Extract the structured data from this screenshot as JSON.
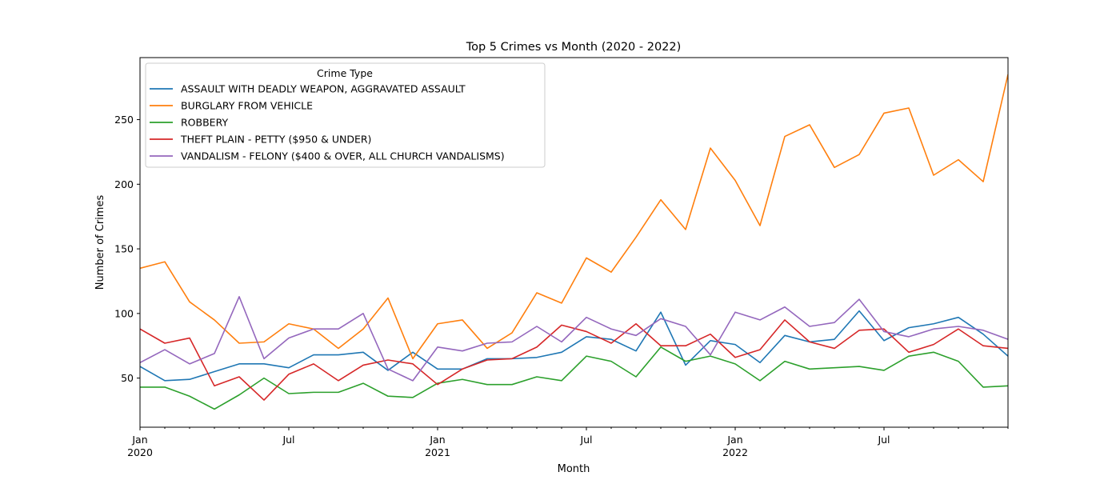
{
  "chart_data": {
    "type": "line",
    "title": "Top 5 Crimes vs Month (2020 - 2022)",
    "xlabel": "Month",
    "ylabel": "Number of Crimes",
    "x": [
      "2020-01",
      "2020-02",
      "2020-03",
      "2020-04",
      "2020-05",
      "2020-06",
      "2020-07",
      "2020-08",
      "2020-09",
      "2020-10",
      "2020-11",
      "2020-12",
      "2021-01",
      "2021-02",
      "2021-03",
      "2021-04",
      "2021-05",
      "2021-06",
      "2021-07",
      "2021-08",
      "2021-09",
      "2021-10",
      "2021-11",
      "2021-12",
      "2022-01",
      "2022-02",
      "2022-03",
      "2022-04",
      "2022-05",
      "2022-06",
      "2022-07",
      "2022-08",
      "2022-09",
      "2022-10",
      "2022-11",
      "2022-12"
    ],
    "ylim": [
      12,
      298
    ],
    "y_ticks": [
      50,
      100,
      150,
      200,
      250
    ],
    "x_ticks": [
      {
        "month": "2020-01",
        "label": "Jan",
        "sublabel": "2020"
      },
      {
        "month": "2020-07",
        "label": "Jul",
        "sublabel": ""
      },
      {
        "month": "2021-01",
        "label": "Jan",
        "sublabel": "2021"
      },
      {
        "month": "2021-07",
        "label": "Jul",
        "sublabel": ""
      },
      {
        "month": "2022-01",
        "label": "Jan",
        "sublabel": "2022"
      },
      {
        "month": "2022-07",
        "label": "Jul",
        "sublabel": ""
      }
    ],
    "grid": false,
    "legend": {
      "title": "Crime Type",
      "placement": "top-left"
    },
    "series": [
      {
        "name": "ASSAULT WITH DEADLY WEAPON, AGGRAVATED ASSAULT",
        "color": "#1f77b4",
        "values": [
          59,
          48,
          49,
          55,
          61,
          61,
          58,
          68,
          68,
          70,
          56,
          70,
          57,
          57,
          65,
          65,
          66,
          70,
          82,
          80,
          71,
          101,
          60,
          79,
          76,
          62,
          83,
          78,
          80,
          102,
          79,
          89,
          92,
          97,
          84,
          67
        ]
      },
      {
        "name": "BURGLARY FROM VEHICLE",
        "color": "#ff7f0e",
        "values": [
          135,
          140,
          109,
          95,
          77,
          78,
          92,
          88,
          73,
          88,
          112,
          65,
          92,
          95,
          73,
          85,
          116,
          108,
          143,
          132,
          159,
          188,
          165,
          228,
          203,
          168,
          237,
          246,
          213,
          223,
          255,
          259,
          207,
          219,
          202,
          285
        ]
      },
      {
        "name": "ROBBERY",
        "color": "#2ca02c",
        "values": [
          43,
          43,
          36,
          26,
          37,
          50,
          38,
          39,
          39,
          46,
          36,
          35,
          46,
          49,
          45,
          45,
          51,
          48,
          67,
          63,
          51,
          74,
          63,
          67,
          61,
          48,
          63,
          57,
          58,
          59,
          56,
          67,
          70,
          63,
          43,
          44
        ]
      },
      {
        "name": "THEFT PLAIN - PETTY ($950 & UNDER)",
        "color": "#d62728",
        "values": [
          88,
          77,
          81,
          44,
          51,
          33,
          53,
          61,
          48,
          60,
          64,
          61,
          45,
          57,
          64,
          65,
          74,
          91,
          86,
          77,
          92,
          75,
          75,
          84,
          66,
          72,
          95,
          78,
          73,
          87,
          88,
          70,
          76,
          88,
          75,
          73
        ]
      },
      {
        "name": "VANDALISM - FELONY ($400 & OVER, ALL CHURCH VANDALISMS)",
        "color": "#9467bd",
        "values": [
          62,
          72,
          61,
          69,
          113,
          65,
          81,
          88,
          88,
          100,
          57,
          48,
          74,
          71,
          77,
          78,
          90,
          78,
          97,
          88,
          83,
          96,
          90,
          68,
          101,
          95,
          105,
          90,
          93,
          111,
          86,
          82,
          88,
          90,
          87,
          80
        ]
      }
    ]
  }
}
